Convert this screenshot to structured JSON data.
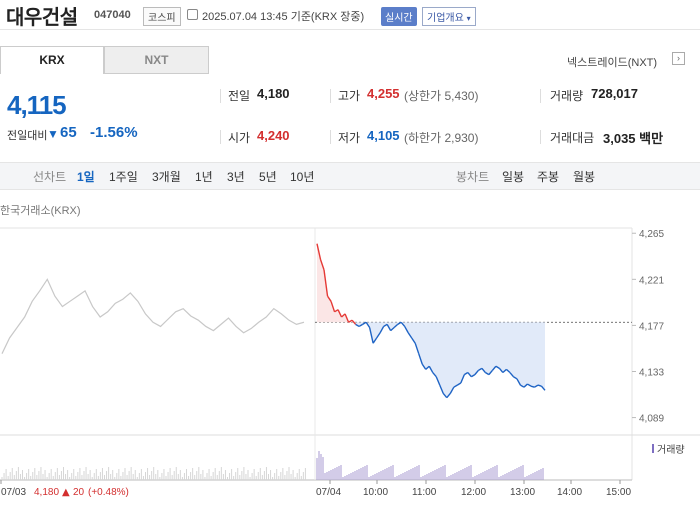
{
  "header": {
    "stock_name": "대우건설",
    "stock_code": "047040",
    "market": "코스피",
    "datetime": "2025.07.04 13:45 기준(KRX 장중)",
    "realtime": "실시간",
    "company_overview": "기업개요",
    "dropdown_icon": "chevron-down-icon"
  },
  "tabs": [
    {
      "label": "KRX",
      "active": true
    },
    {
      "label": "NXT",
      "active": false
    }
  ],
  "nextrade_link": "넥스트레이드(NXT)",
  "price": {
    "current": "4,115",
    "change_label": "전일대비",
    "change_value": "65",
    "change_pct": "-1.56%",
    "direction": "down"
  },
  "stats": {
    "prev_close": {
      "label": "전일",
      "value": "4,180"
    },
    "high": {
      "label": "고가",
      "value": "4,255",
      "sub": "(상한가 5,430)"
    },
    "volume": {
      "label": "거래량",
      "value": "728,017"
    },
    "open": {
      "label": "시가",
      "value": "4,240"
    },
    "low": {
      "label": "저가",
      "value": "4,105",
      "sub": "(하한가 2,930)"
    },
    "amount": {
      "label": "거래대금",
      "value": "3,035 백만"
    }
  },
  "periods": {
    "line_label": "선차트",
    "line_items": [
      "1일",
      "1주일",
      "3개월",
      "1년",
      "3년",
      "5년",
      "10년"
    ],
    "active": "1일",
    "candle_label": "봉차트",
    "candle_items": [
      "일봉",
      "주봉",
      "월봉"
    ]
  },
  "chart_source": "한국거래소(KRX)",
  "chart_data": {
    "type": "line",
    "y_ticks": [
      4265,
      4221,
      4177,
      4133,
      4089
    ],
    "ylim": [
      4080,
      4270
    ],
    "reference_price": 4180,
    "x_labels": [
      "07/03",
      "07/04",
      "10:00",
      "11:00",
      "12:00",
      "13:00",
      "14:00",
      "15:00"
    ],
    "volume_legend": "거래량",
    "prev_day_summary": {
      "date": "07/03",
      "close": "4,180",
      "change": "20",
      "pct": "(+0.48%)"
    },
    "colors": {
      "up": "#e53935",
      "down": "#1e63c4",
      "prev": "#c8c8c8",
      "fill": "#dce6f8",
      "fill_up": "#fbe3e3"
    },
    "prev_day_series": [
      4150,
      4165,
      4175,
      4185,
      4200,
      4210,
      4221,
      4205,
      4195,
      4200,
      4205,
      4210,
      4195,
      4185,
      4190,
      4198,
      4202,
      4208,
      4200,
      4188,
      4180,
      4176,
      4183,
      4190,
      4193,
      4186,
      4182,
      4176,
      4172,
      4178,
      4184,
      4176,
      4170,
      4174,
      4180,
      4185,
      4193,
      4188,
      4182,
      4178,
      4180
    ],
    "today_series": [
      4255,
      4240,
      4230,
      4205,
      4200,
      4190,
      4192,
      4185,
      4188,
      4180,
      4182,
      4178,
      4176,
      4178,
      4180,
      4175,
      4160,
      4165,
      4170,
      4176,
      4178,
      4172,
      4175,
      4178,
      4180,
      4176,
      4170,
      4165,
      4160,
      4150,
      4140,
      4135,
      4138,
      4132,
      4128,
      4120,
      4112,
      4108,
      4112,
      4118,
      4120,
      4122,
      4130,
      4132,
      4128,
      4130,
      4134,
      4136,
      4132,
      4130,
      4134,
      4138,
      4136,
      4132,
      4135,
      4132,
      4128,
      4126,
      4120,
      4118,
      4121,
      4119,
      4118,
      4120,
      4119,
      4115
    ]
  }
}
